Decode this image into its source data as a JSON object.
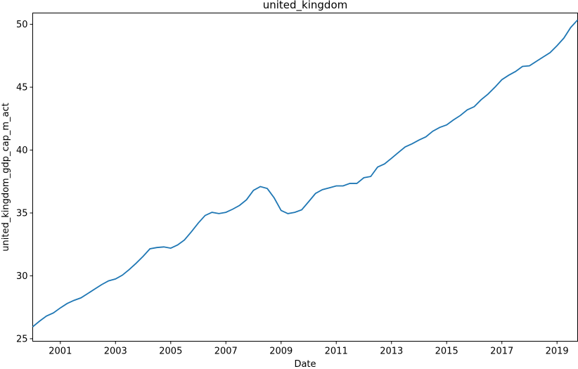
{
  "chart_data": {
    "type": "line",
    "title": "united_kingdom",
    "xlabel": "Date",
    "ylabel": "united_kingdom_gdp_cap_m_act",
    "xlim": [
      "2000-01-01",
      "2019-10-01"
    ],
    "ylim": [
      24.8,
      50.9
    ],
    "y_ticks": [
      25,
      30,
      35,
      40,
      45,
      50
    ],
    "x_ticks": [
      {
        "date": "2001-01-01",
        "label": "2001"
      },
      {
        "date": "2003-01-01",
        "label": "2003"
      },
      {
        "date": "2005-01-01",
        "label": "2005"
      },
      {
        "date": "2007-01-01",
        "label": "2007"
      },
      {
        "date": "2009-01-01",
        "label": "2009"
      },
      {
        "date": "2011-01-01",
        "label": "2011"
      },
      {
        "date": "2013-01-01",
        "label": "2013"
      },
      {
        "date": "2015-01-01",
        "label": "2015"
      },
      {
        "date": "2017-01-01",
        "label": "2017"
      },
      {
        "date": "2019-01-01",
        "label": "2019"
      }
    ],
    "grid": false,
    "series": [
      {
        "color": "#1f77b4",
        "x": [
          "2000-01-01",
          "2000-04-01",
          "2000-07-01",
          "2000-10-01",
          "2001-01-01",
          "2001-04-01",
          "2001-07-01",
          "2001-10-01",
          "2002-01-01",
          "2002-04-01",
          "2002-07-01",
          "2002-10-01",
          "2003-01-01",
          "2003-04-01",
          "2003-07-01",
          "2003-10-01",
          "2004-01-01",
          "2004-04-01",
          "2004-07-01",
          "2004-10-01",
          "2005-01-01",
          "2005-04-01",
          "2005-07-01",
          "2005-10-01",
          "2006-01-01",
          "2006-04-01",
          "2006-07-01",
          "2006-10-01",
          "2007-01-01",
          "2007-04-01",
          "2007-07-01",
          "2007-10-01",
          "2008-01-01",
          "2008-04-01",
          "2008-07-01",
          "2008-10-01",
          "2009-01-01",
          "2009-04-01",
          "2009-07-01",
          "2009-10-01",
          "2010-01-01",
          "2010-04-01",
          "2010-07-01",
          "2010-10-01",
          "2011-01-01",
          "2011-04-01",
          "2011-07-01",
          "2011-10-01",
          "2012-01-01",
          "2012-04-01",
          "2012-07-01",
          "2012-10-01",
          "2013-01-01",
          "2013-04-01",
          "2013-07-01",
          "2013-10-01",
          "2014-01-01",
          "2014-04-01",
          "2014-07-01",
          "2014-10-01",
          "2015-01-01",
          "2015-04-01",
          "2015-07-01",
          "2015-10-01",
          "2016-01-01",
          "2016-04-01",
          "2016-07-01",
          "2016-10-01",
          "2017-01-01",
          "2017-04-01",
          "2017-07-01",
          "2017-10-01",
          "2018-01-01",
          "2018-04-01",
          "2018-07-01",
          "2018-10-01",
          "2019-01-01",
          "2019-04-01",
          "2019-07-01",
          "2019-10-01"
        ],
        "values": [
          25.95,
          26.4,
          26.8,
          27.05,
          27.45,
          27.8,
          28.05,
          28.25,
          28.6,
          28.95,
          29.3,
          29.6,
          29.75,
          30.05,
          30.5,
          31.0,
          31.55,
          32.15,
          32.25,
          32.3,
          32.2,
          32.45,
          32.85,
          33.5,
          34.2,
          34.8,
          35.05,
          34.95,
          35.05,
          35.3,
          35.6,
          36.05,
          36.8,
          37.1,
          36.95,
          36.2,
          35.2,
          34.95,
          35.05,
          35.25,
          35.9,
          36.55,
          36.85,
          37.0,
          37.15,
          37.15,
          37.35,
          37.35,
          37.8,
          37.9,
          38.65,
          38.9,
          39.35,
          39.8,
          40.25,
          40.5,
          40.8,
          41.05,
          41.5,
          41.8,
          42.0,
          42.4,
          42.75,
          43.2,
          43.45,
          44.0,
          44.45,
          45.0,
          45.6,
          45.95,
          46.25,
          46.65,
          46.7,
          47.05,
          47.4,
          47.75,
          48.3,
          48.9,
          49.75,
          50.35
        ]
      }
    ]
  }
}
